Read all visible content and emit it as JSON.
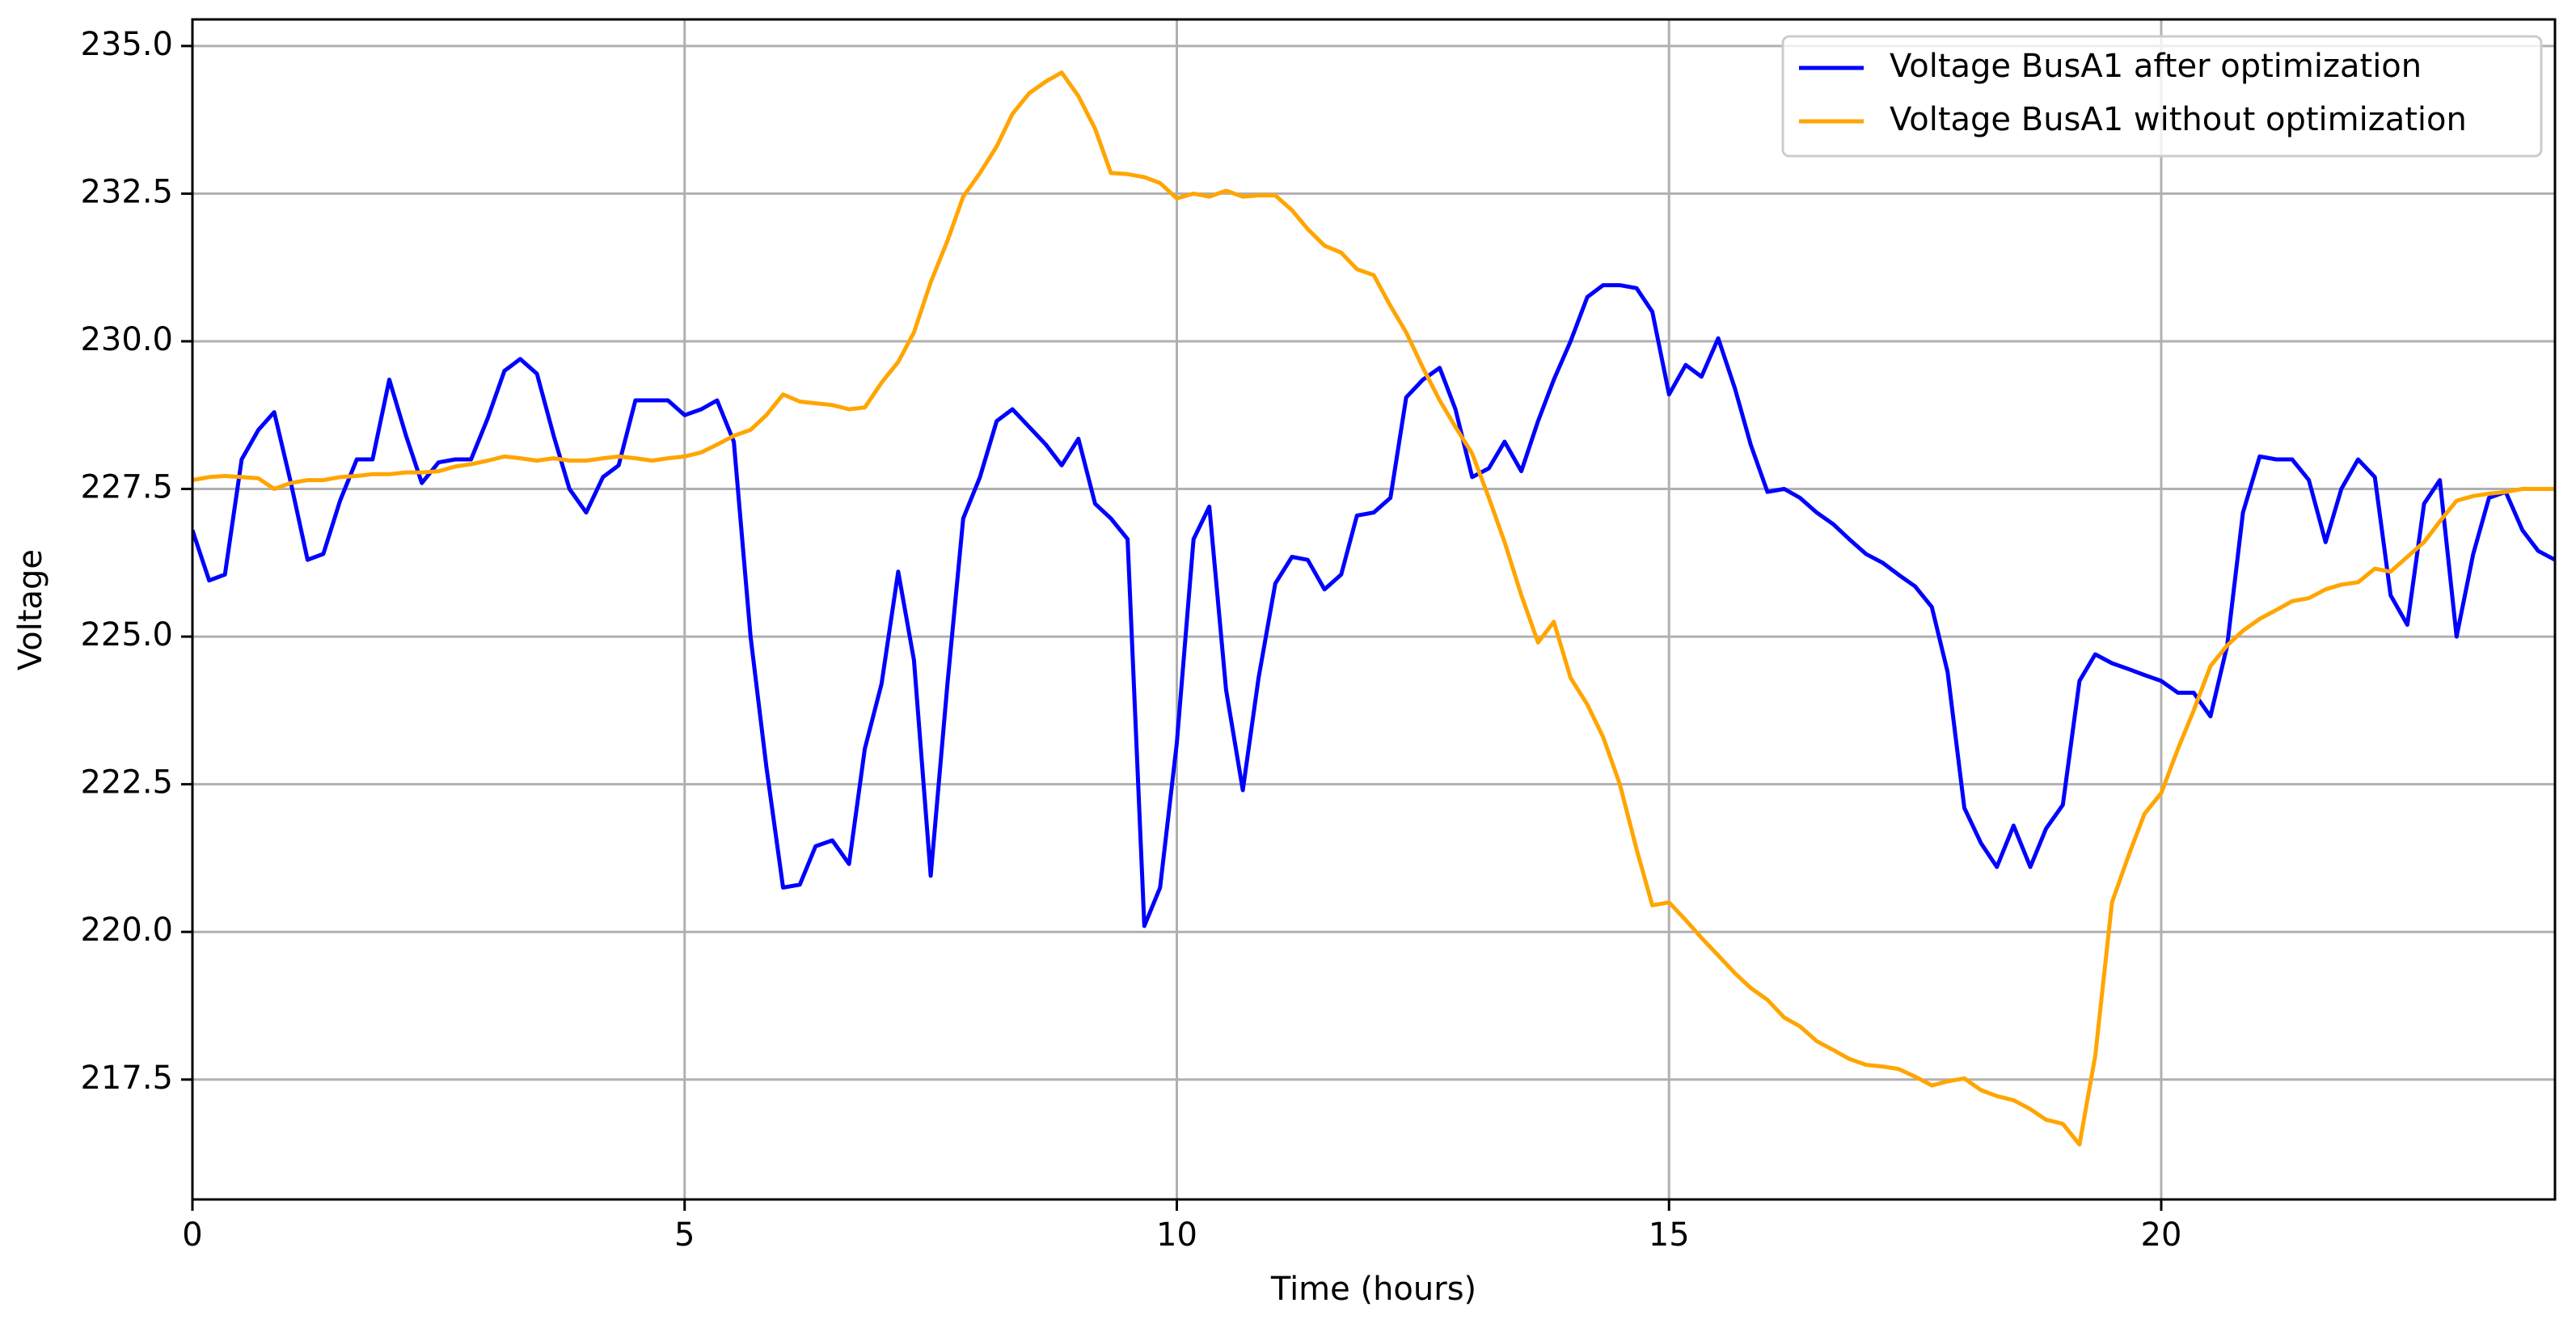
{
  "chart_data": {
    "type": "line",
    "xlabel": "Time (hours)",
    "ylabel": "Voltage",
    "xlim": [
      0,
      24
    ],
    "xticks": [
      0,
      5,
      10,
      15,
      20
    ],
    "ylim": [
      215.47,
      235.45
    ],
    "yticks": [
      217.5,
      {
        "value": 220,
        "label": "220.0"
      },
      222.5,
      {
        "value": 225,
        "label": "225.0"
      },
      227.5,
      {
        "value": 230,
        "label": "230.0"
      },
      232.5,
      {
        "value": 235,
        "label": "235.0"
      }
    ],
    "grid": true,
    "legend": "upper right",
    "x": [
      0,
      0.17,
      0.33,
      0.5,
      0.67,
      0.83,
      1,
      1.17,
      1.33,
      1.5,
      1.67,
      1.83,
      2,
      2.17,
      2.33,
      2.5,
      2.67,
      2.83,
      3,
      3.17,
      3.33,
      3.5,
      3.67,
      3.83,
      4,
      4.17,
      4.33,
      4.5,
      4.67,
      4.83,
      5,
      5.17,
      5.33,
      5.5,
      5.67,
      5.83,
      6,
      6.17,
      6.33,
      6.5,
      6.67,
      6.83,
      7,
      7.17,
      7.33,
      7.5,
      7.67,
      7.83,
      8,
      8.17,
      8.33,
      8.5,
      8.67,
      8.83,
      9,
      9.17,
      9.33,
      9.5,
      9.67,
      9.83,
      10,
      10.17,
      10.33,
      10.5,
      10.67,
      10.83,
      11,
      11.17,
      11.33,
      11.5,
      11.67,
      11.83,
      12,
      12.17,
      12.33,
      12.5,
      12.67,
      12.83,
      13,
      13.17,
      13.33,
      13.5,
      13.67,
      13.83,
      14,
      14.17,
      14.33,
      14.5,
      14.67,
      14.83,
      15,
      15.17,
      15.33,
      15.5,
      15.67,
      15.83,
      16,
      16.17,
      16.33,
      16.5,
      16.67,
      16.83,
      17,
      17.17,
      17.33,
      17.5,
      17.67,
      17.83,
      18,
      18.17,
      18.33,
      18.5,
      18.67,
      18.83,
      19,
      19.17,
      19.33,
      19.5,
      19.67,
      19.83,
      20,
      20.17,
      20.33,
      20.5,
      20.67,
      20.83,
      21,
      21.17,
      21.33,
      21.5,
      21.67,
      21.83,
      22,
      22.17,
      22.33,
      22.5,
      22.67,
      22.83,
      23,
      23.17,
      23.33,
      23.5,
      23.67,
      23.83,
      24
    ],
    "series": [
      {
        "name": "Voltage BusA1 after optimization",
        "color": "#0000ff",
        "values": [
          226.8,
          225.95,
          226.05,
          228.0,
          228.5,
          228.8,
          227.6,
          226.3,
          226.4,
          227.3,
          228.0,
          228.0,
          229.35,
          228.4,
          227.6,
          227.95,
          228.0,
          228.0,
          228.7,
          229.5,
          229.7,
          229.45,
          228.4,
          227.5,
          227.1,
          227.7,
          227.9,
          229.0,
          229.0,
          229.0,
          228.75,
          228.85,
          229.0,
          228.3,
          225.0,
          222.8,
          220.75,
          220.8,
          221.45,
          221.55,
          221.15,
          223.1,
          224.2,
          226.1,
          224.6,
          220.95,
          224.2,
          227.0,
          227.7,
          228.65,
          228.85,
          228.55,
          228.25,
          227.9,
          228.35,
          227.25,
          227.0,
          226.65,
          220.1,
          220.75,
          223.2,
          226.65,
          227.2,
          224.1,
          222.4,
          224.3,
          225.9,
          226.35,
          226.3,
          225.8,
          226.05,
          227.05,
          227.1,
          227.35,
          229.05,
          229.35,
          229.55,
          228.85,
          227.7,
          227.85,
          228.3,
          227.8,
          228.65,
          229.35,
          230.0,
          230.75,
          230.95,
          230.95,
          230.9,
          230.5,
          229.1,
          229.6,
          229.4,
          230.05,
          229.2,
          228.25,
          227.45,
          227.5,
          227.35,
          227.1,
          226.9,
          226.65,
          226.4,
          226.25,
          226.05,
          225.85,
          225.5,
          224.4,
          222.1,
          221.5,
          221.1,
          221.8,
          221.1,
          221.75,
          222.15,
          224.25,
          224.7,
          224.55,
          224.45,
          224.35,
          224.25,
          224.05,
          224.05,
          223.65,
          224.85,
          227.1,
          228.05,
          228.0,
          228.0,
          227.65,
          226.6,
          227.5,
          228.0,
          227.7,
          225.7,
          225.2,
          227.25,
          227.65,
          225.0,
          226.4,
          227.35,
          227.45,
          226.8,
          226.45,
          226.3
        ]
      },
      {
        "name": "Voltage BusA1 without optimization",
        "color": "#ffa500",
        "values": [
          227.65,
          227.7,
          227.72,
          227.7,
          227.68,
          227.5,
          227.6,
          227.65,
          227.65,
          227.7,
          227.72,
          227.75,
          227.75,
          227.78,
          227.78,
          227.8,
          227.88,
          227.92,
          227.98,
          228.05,
          228.02,
          227.98,
          228.02,
          227.98,
          227.98,
          228.02,
          228.05,
          228.02,
          227.98,
          228.02,
          228.05,
          228.12,
          228.25,
          228.4,
          228.5,
          228.75,
          229.1,
          228.98,
          228.95,
          228.92,
          228.85,
          228.88,
          229.3,
          229.65,
          230.15,
          231.0,
          231.7,
          232.45,
          232.85,
          233.3,
          233.85,
          234.2,
          234.4,
          234.55,
          234.15,
          233.6,
          232.85,
          232.83,
          232.78,
          232.68,
          232.42,
          232.5,
          232.45,
          232.55,
          232.45,
          232.47,
          232.47,
          232.22,
          231.9,
          231.62,
          231.5,
          231.22,
          231.12,
          230.6,
          230.15,
          229.55,
          229.0,
          228.55,
          228.1,
          227.35,
          226.6,
          225.7,
          224.9,
          225.25,
          224.3,
          223.85,
          223.3,
          222.5,
          221.4,
          220.45,
          220.5,
          220.2,
          219.9,
          219.6,
          219.3,
          219.05,
          218.85,
          218.55,
          218.4,
          218.15,
          218.0,
          217.85,
          217.75,
          217.72,
          217.68,
          217.55,
          217.4,
          217.47,
          217.52,
          217.32,
          217.22,
          217.15,
          217.0,
          216.82,
          216.75,
          216.4,
          217.9,
          220.5,
          221.3,
          222.0,
          222.35,
          223.1,
          223.75,
          224.5,
          224.85,
          225.1,
          225.3,
          225.45,
          225.6,
          225.65,
          225.8,
          225.88,
          225.92,
          226.15,
          226.1,
          226.35,
          226.6,
          226.95,
          227.3,
          227.38,
          227.42,
          227.45,
          227.5,
          227.5,
          227.5
        ]
      }
    ]
  }
}
